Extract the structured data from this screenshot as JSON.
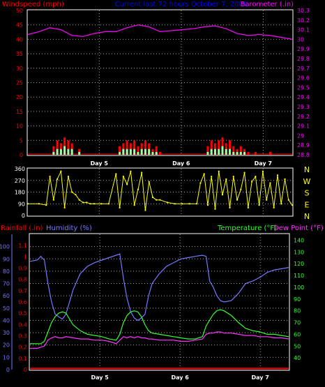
{
  "chart_data": [
    {
      "type": "line",
      "header": "Current last 72 hours October 7, 2006",
      "left_axis_label": "Windspeed (mph)",
      "right_axis_label": "Barometer (.in)",
      "x_ticks": [
        "Day 5",
        "Day 6",
        "Day 7"
      ],
      "left_ticks": [
        0,
        5,
        10,
        15,
        20,
        25,
        30,
        35,
        40,
        45,
        50
      ],
      "right_ticks": [
        "28.8",
        "28.9",
        "29",
        "29.1",
        "29.2",
        "29.3",
        "29.4",
        "29.5",
        "29.6",
        "29.7",
        "29.8",
        "29.9",
        "30",
        "30.1",
        "30.2",
        "30.3"
      ],
      "ylim_left": [
        0,
        50
      ],
      "ylim_right": [
        28.8,
        30.3
      ],
      "grid": true,
      "colors": {
        "wind_gust": "#ff0000",
        "wind_avg": "#99ffaa",
        "barometer": "#ff00ff",
        "header": "#0000ff",
        "left_label": "#ff0000",
        "right_label": "#ff00ff"
      },
      "series": [
        {
          "name": "Barometer",
          "x": [
            0,
            3,
            6,
            9,
            12,
            15,
            18,
            21,
            24,
            27,
            30,
            33,
            36,
            39,
            42,
            45,
            48,
            51,
            54,
            57,
            60,
            63,
            66,
            69,
            72
          ],
          "values": [
            30.05,
            30.08,
            30.12,
            30.1,
            30.04,
            30.03,
            30.06,
            30.08,
            30.08,
            30.12,
            30.15,
            30.13,
            30.08,
            30.09,
            30.1,
            30.11,
            30.13,
            30.14,
            30.11,
            30.06,
            30.04,
            30.05,
            30.04,
            30.02,
            30.0
          ]
        },
        {
          "name": "Wind gust",
          "x": [
            0,
            6,
            7,
            8,
            9,
            10,
            11,
            12,
            14,
            16,
            24,
            25,
            26,
            27,
            28,
            29,
            30,
            31,
            32,
            33,
            34,
            35,
            36,
            38,
            40,
            48,
            49,
            50,
            51,
            52,
            53,
            54,
            55,
            56,
            57,
            58,
            59,
            60,
            62,
            64,
            66,
            68,
            72
          ],
          "values": [
            0,
            0,
            3,
            5,
            4,
            6,
            5,
            4,
            2,
            0,
            0,
            3,
            4,
            5,
            4,
            5,
            3,
            4,
            5,
            4,
            2,
            3,
            1,
            0,
            0,
            0,
            3,
            5,
            4,
            5,
            6,
            4,
            5,
            3,
            2,
            3,
            2,
            1,
            1,
            0,
            1,
            0,
            0
          ]
        },
        {
          "name": "Wind avg",
          "x": [
            0,
            6,
            7,
            8,
            9,
            10,
            11,
            12,
            14,
            16,
            24,
            25,
            26,
            27,
            28,
            29,
            30,
            31,
            32,
            33,
            34,
            35,
            36,
            38,
            40,
            48,
            49,
            50,
            51,
            52,
            53,
            54,
            55,
            56,
            57,
            58,
            59,
            60,
            62,
            64,
            66,
            68,
            72
          ],
          "values": [
            0,
            0,
            1,
            2,
            2,
            3,
            2,
            2,
            1,
            0,
            0,
            1,
            2,
            2,
            2,
            2,
            1,
            2,
            2,
            2,
            1,
            1,
            0,
            0,
            0,
            0,
            1,
            2,
            2,
            2,
            3,
            2,
            2,
            1,
            1,
            1,
            1,
            0,
            0,
            0,
            0,
            0,
            0
          ]
        }
      ]
    },
    {
      "type": "scatter",
      "x_ticks": [],
      "left_ticks": [
        0,
        90,
        180,
        270,
        360
      ],
      "right_ticks": [
        "N",
        "E",
        "S",
        "W",
        "N"
      ],
      "ylim": [
        0,
        360
      ],
      "grid": true,
      "colors": {
        "wind_dir": "#ffff00"
      },
      "series": [
        {
          "name": "Wind direction",
          "x": [
            0,
            3,
            5,
            6,
            7,
            8,
            9,
            10,
            11,
            12,
            13,
            14,
            15,
            16,
            17,
            18,
            20,
            22,
            24,
            25,
            26,
            27,
            28,
            29,
            30,
            31,
            32,
            33,
            34,
            35,
            36,
            38,
            40,
            42,
            44,
            46,
            47,
            48,
            49,
            50,
            51,
            52,
            53,
            54,
            55,
            56,
            57,
            58,
            59,
            60,
            61,
            62,
            63,
            64,
            65,
            66,
            67,
            68,
            69,
            70,
            71,
            72
          ],
          "values": [
            90,
            90,
            80,
            300,
            120,
            280,
            340,
            60,
            300,
            180,
            160,
            120,
            100,
            100,
            90,
            90,
            90,
            90,
            320,
            60,
            300,
            240,
            340,
            80,
            200,
            330,
            40,
            260,
            140,
            120,
            120,
            100,
            90,
            90,
            90,
            90,
            250,
            320,
            80,
            300,
            50,
            340,
            160,
            280,
            60,
            300,
            120,
            200,
            330,
            60,
            260,
            300,
            80,
            340,
            120,
            250,
            60,
            310,
            90,
            280,
            120,
            80
          ]
        }
      ]
    },
    {
      "type": "line",
      "left_axis_label": "Rainfall (.in)",
      "inner_axis_label": "Humidity (%)",
      "right_axis_label_1": "Temperature (°F)",
      "right_axis_label_2": "Dew Point (°F)",
      "x_ticks": [
        "Day 5",
        "Day 6",
        "Day 7"
      ],
      "rain_ticks": [
        "0",
        "0.1",
        "0.2",
        "0.3",
        "0.4",
        "0.5",
        "0.6",
        "0.7",
        "0.8",
        "0.9",
        "1",
        "1.1"
      ],
      "humidity_ticks": [
        0,
        10,
        20,
        30,
        40,
        50,
        60,
        70,
        80,
        90,
        100
      ],
      "temp_ticks": [
        40,
        50,
        60,
        70,
        80,
        90,
        100,
        110,
        120,
        130,
        140
      ],
      "ylim_rain": [
        0,
        1.2
      ],
      "ylim_humidity": [
        0,
        110
      ],
      "ylim_temp": [
        30,
        145
      ],
      "grid": true,
      "colors": {
        "rain": "#ff0000",
        "humidity": "#7777ff",
        "temperature": "#33ff33",
        "dewpoint": "#ff33ff",
        "rain_label": "#ff0000",
        "humidity_label": "#7777ff",
        "temp_label": "#33ff33",
        "dew_label": "#ff33ff"
      },
      "series": [
        {
          "name": "Humidity",
          "x": [
            0,
            2,
            3,
            4,
            5,
            6,
            7,
            8,
            9,
            10,
            12,
            14,
            16,
            18,
            20,
            22,
            24,
            25,
            26,
            27,
            28,
            29,
            30,
            31,
            32,
            33,
            34,
            36,
            38,
            40,
            42,
            44,
            46,
            48,
            49,
            50,
            51,
            52,
            53,
            54,
            56,
            58,
            60,
            62,
            64,
            66,
            68,
            70,
            72
          ],
          "values": [
            88,
            89,
            92,
            89,
            70,
            55,
            45,
            43,
            41,
            45,
            65,
            78,
            84,
            87,
            89,
            91,
            93,
            94,
            74,
            58,
            47,
            42,
            40,
            42,
            45,
            60,
            70,
            78,
            84,
            87,
            90,
            91,
            92,
            93,
            92,
            72,
            67,
            60,
            56,
            55,
            56,
            62,
            70,
            72,
            75,
            79,
            81,
            82,
            83
          ]
        },
        {
          "name": "Temperature",
          "x": [
            0,
            2,
            3,
            4,
            5,
            6,
            7,
            8,
            9,
            10,
            12,
            14,
            16,
            18,
            20,
            22,
            24,
            25,
            26,
            27,
            28,
            29,
            30,
            31,
            32,
            33,
            34,
            36,
            38,
            40,
            42,
            44,
            46,
            48,
            49,
            50,
            51,
            52,
            53,
            54,
            56,
            58,
            60,
            62,
            64,
            66,
            68,
            70,
            72
          ],
          "values": [
            52,
            52,
            52,
            54,
            62,
            70,
            75,
            78,
            79,
            78,
            68,
            63,
            60,
            59,
            58,
            56,
            55,
            60,
            70,
            76,
            79,
            80,
            79,
            75,
            68,
            63,
            61,
            60,
            59,
            58,
            57,
            56,
            56,
            58,
            67,
            72,
            77,
            80,
            81,
            80,
            76,
            70,
            65,
            63,
            62,
            60,
            60,
            59,
            58
          ]
        },
        {
          "name": "Dew Point",
          "x": [
            0,
            2,
            3,
            4,
            5,
            6,
            7,
            8,
            9,
            10,
            12,
            14,
            16,
            18,
            20,
            22,
            24,
            25,
            26,
            27,
            28,
            29,
            30,
            31,
            32,
            33,
            34,
            36,
            38,
            40,
            42,
            44,
            46,
            48,
            49,
            50,
            51,
            52,
            53,
            54,
            56,
            58,
            60,
            62,
            64,
            66,
            68,
            70,
            72
          ],
          "values": [
            48,
            48,
            49,
            50,
            55,
            57,
            58,
            57,
            57,
            58,
            57,
            56,
            56,
            55,
            55,
            54,
            52,
            55,
            58,
            57,
            58,
            57,
            58,
            57,
            57,
            56,
            56,
            55,
            55,
            55,
            54,
            54,
            55,
            56,
            60,
            61,
            61,
            62,
            62,
            61,
            61,
            60,
            59,
            59,
            58,
            58,
            57,
            57,
            56
          ]
        },
        {
          "name": "Rainfall",
          "x": [
            0,
            72
          ],
          "values": [
            0.01,
            0.01
          ]
        }
      ]
    }
  ]
}
